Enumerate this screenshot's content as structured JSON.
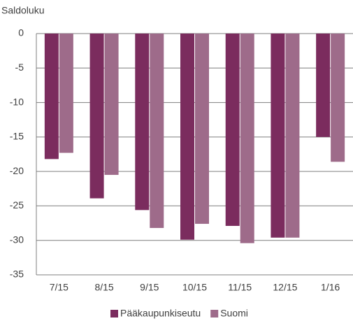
{
  "chart_data": {
    "type": "bar",
    "y_label": "Saldoluku",
    "categories": [
      "7/15",
      "8/15",
      "9/15",
      "10/15",
      "11/15",
      "12/15",
      "1/16"
    ],
    "series": [
      {
        "name": "Pääkaupunkiseutu",
        "color": "#7b2c5e",
        "values": [
          -18.2,
          -23.9,
          -25.6,
          -29.9,
          -27.9,
          -29.6,
          -15.0
        ]
      },
      {
        "name": "Suomi",
        "color": "#9e6b8a",
        "values": [
          -17.3,
          -20.5,
          -28.2,
          -27.6,
          -30.4,
          -29.6,
          -18.6
        ]
      }
    ],
    "ylim": [
      -35,
      0
    ],
    "yticks": [
      0,
      -5,
      -10,
      -15,
      -20,
      -25,
      -30,
      -35
    ],
    "grid": true,
    "legend": "bottom"
  }
}
